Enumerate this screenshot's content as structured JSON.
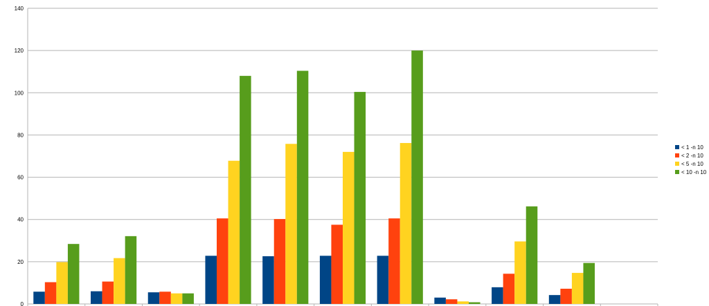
{
  "chart_data": {
    "type": "bar",
    "title": "",
    "xlabel": "",
    "ylabel": "",
    "ylim": [
      0,
      140
    ],
    "yticks": [
      0,
      20,
      40,
      60,
      80,
      100,
      120,
      140
    ],
    "grid": true,
    "legend_position": "right",
    "category_count": 11,
    "series": [
      {
        "name": "< 1 -n 10",
        "color": "#004586",
        "values": [
          5.8,
          6.0,
          5.5,
          22.8,
          22.6,
          22.8,
          22.8,
          3.0,
          7.9,
          4.2,
          null
        ]
      },
      {
        "name": "< 2 -n 10",
        "color": "#ff420e",
        "values": [
          10.3,
          10.6,
          5.8,
          40.5,
          40.2,
          37.5,
          40.5,
          2.2,
          14.3,
          7.2,
          null
        ]
      },
      {
        "name": "< 5 -n 10",
        "color": "#ffd320",
        "values": [
          19.8,
          21.7,
          5.0,
          67.8,
          75.8,
          72.0,
          76.2,
          1.2,
          29.6,
          14.7,
          null
        ]
      },
      {
        "name": "< 10 -n 10",
        "color": "#579d1c",
        "values": [
          28.4,
          32.1,
          5.0,
          108.0,
          110.4,
          100.4,
          120.0,
          0.8,
          46.2,
          19.4,
          null
        ]
      }
    ]
  }
}
